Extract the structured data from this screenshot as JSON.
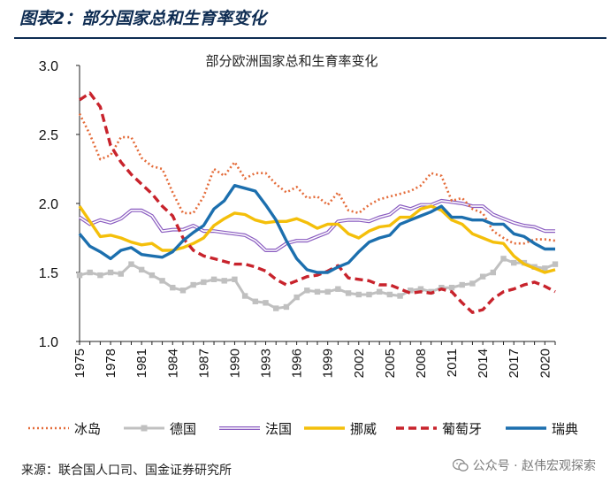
{
  "header": {
    "figure_title": "图表2：部分国家总和生育率变化"
  },
  "footer": {
    "source": "来源：联合国人口司、国金证券研究所",
    "watermark": "公众号 · 赵伟宏观探索"
  },
  "chart_data": {
    "type": "line",
    "title": "部分欧洲国家总和生育率变化",
    "xlabel": "",
    "ylabel": "",
    "xlim": [
      1975,
      2021
    ],
    "ylim": [
      1.0,
      3.0
    ],
    "yticks": [
      "1.0",
      "1.5",
      "2.0",
      "2.5",
      "3.0"
    ],
    "xticks": [
      "1975",
      "1978",
      "1981",
      "1984",
      "1987",
      "1990",
      "1993",
      "1996",
      "1999",
      "2002",
      "2005",
      "2008",
      "2011",
      "2014",
      "2017",
      "2020"
    ],
    "grid": false,
    "legend_position": "bottom",
    "x": [
      1975,
      1976,
      1977,
      1978,
      1979,
      1980,
      1981,
      1982,
      1983,
      1984,
      1985,
      1986,
      1987,
      1988,
      1989,
      1990,
      1991,
      1992,
      1993,
      1994,
      1995,
      1996,
      1997,
      1998,
      1999,
      2000,
      2001,
      2002,
      2003,
      2004,
      2005,
      2006,
      2007,
      2008,
      2009,
      2010,
      2011,
      2012,
      2013,
      2014,
      2015,
      2016,
      2017,
      2018,
      2019,
      2020,
      2021
    ],
    "series": [
      {
        "name": "冰岛",
        "color": "#e46c3a",
        "style": "dotted",
        "values": [
          2.65,
          2.5,
          2.32,
          2.35,
          2.48,
          2.48,
          2.33,
          2.27,
          2.25,
          2.08,
          1.93,
          1.93,
          2.05,
          2.25,
          2.2,
          2.3,
          2.18,
          2.22,
          2.22,
          2.14,
          2.08,
          2.12,
          2.04,
          2.05,
          1.99,
          2.08,
          1.95,
          1.93,
          1.99,
          2.03,
          2.05,
          2.07,
          2.09,
          2.13,
          2.22,
          2.2,
          2.02,
          2.04,
          1.96,
          1.93,
          1.8,
          1.75,
          1.71,
          1.71,
          1.74,
          1.74,
          1.73
        ]
      },
      {
        "name": "德国",
        "color": "#c0c0c0",
        "style": "markers",
        "values": [
          1.48,
          1.5,
          1.48,
          1.5,
          1.49,
          1.56,
          1.52,
          1.48,
          1.44,
          1.39,
          1.37,
          1.41,
          1.43,
          1.45,
          1.44,
          1.45,
          1.33,
          1.29,
          1.28,
          1.24,
          1.25,
          1.32,
          1.37,
          1.36,
          1.36,
          1.38,
          1.35,
          1.34,
          1.34,
          1.36,
          1.34,
          1.33,
          1.37,
          1.38,
          1.36,
          1.39,
          1.39,
          1.41,
          1.42,
          1.47,
          1.5,
          1.6,
          1.57,
          1.57,
          1.54,
          1.53,
          1.56
        ]
      },
      {
        "name": "法国",
        "color": "#8a5cc0",
        "style": "double",
        "values": [
          1.9,
          1.85,
          1.88,
          1.86,
          1.89,
          1.95,
          1.95,
          1.91,
          1.8,
          1.81,
          1.81,
          1.84,
          1.8,
          1.8,
          1.79,
          1.78,
          1.77,
          1.73,
          1.66,
          1.66,
          1.71,
          1.73,
          1.73,
          1.76,
          1.79,
          1.87,
          1.88,
          1.88,
          1.87,
          1.9,
          1.92,
          1.98,
          1.96,
          1.99,
          1.99,
          2.02,
          2.01,
          2.0,
          1.98,
          1.98,
          1.92,
          1.89,
          1.86,
          1.84,
          1.83,
          1.8,
          1.8
        ]
      },
      {
        "name": "挪威",
        "color": "#f4bf0a",
        "style": "solid",
        "values": [
          1.98,
          1.87,
          1.76,
          1.77,
          1.75,
          1.72,
          1.7,
          1.71,
          1.66,
          1.66,
          1.68,
          1.71,
          1.75,
          1.84,
          1.89,
          1.93,
          1.92,
          1.88,
          1.86,
          1.87,
          1.87,
          1.89,
          1.86,
          1.82,
          1.85,
          1.85,
          1.78,
          1.75,
          1.8,
          1.83,
          1.84,
          1.9,
          1.9,
          1.96,
          1.98,
          1.95,
          1.88,
          1.85,
          1.78,
          1.75,
          1.72,
          1.71,
          1.62,
          1.56,
          1.53,
          1.5,
          1.52
        ]
      },
      {
        "name": "葡萄牙",
        "color": "#c8232c",
        "style": "dashed",
        "values": [
          2.75,
          2.8,
          2.7,
          2.42,
          2.3,
          2.21,
          2.14,
          2.07,
          1.98,
          1.91,
          1.75,
          1.66,
          1.62,
          1.6,
          1.58,
          1.56,
          1.56,
          1.54,
          1.51,
          1.45,
          1.41,
          1.44,
          1.47,
          1.48,
          1.51,
          1.55,
          1.46,
          1.45,
          1.44,
          1.41,
          1.41,
          1.38,
          1.35,
          1.36,
          1.35,
          1.38,
          1.36,
          1.28,
          1.21,
          1.23,
          1.31,
          1.36,
          1.38,
          1.41,
          1.43,
          1.4,
          1.36
        ]
      },
      {
        "name": "瑞典",
        "color": "#1c6fae",
        "style": "solid",
        "values": [
          1.78,
          1.69,
          1.65,
          1.6,
          1.66,
          1.68,
          1.63,
          1.62,
          1.61,
          1.65,
          1.73,
          1.79,
          1.84,
          1.96,
          2.02,
          2.13,
          2.11,
          2.09,
          1.99,
          1.88,
          1.73,
          1.6,
          1.52,
          1.5,
          1.5,
          1.54,
          1.57,
          1.65,
          1.72,
          1.75,
          1.77,
          1.85,
          1.88,
          1.91,
          1.94,
          1.98,
          1.9,
          1.9,
          1.88,
          1.88,
          1.85,
          1.85,
          1.78,
          1.76,
          1.71,
          1.67,
          1.67
        ]
      }
    ]
  }
}
